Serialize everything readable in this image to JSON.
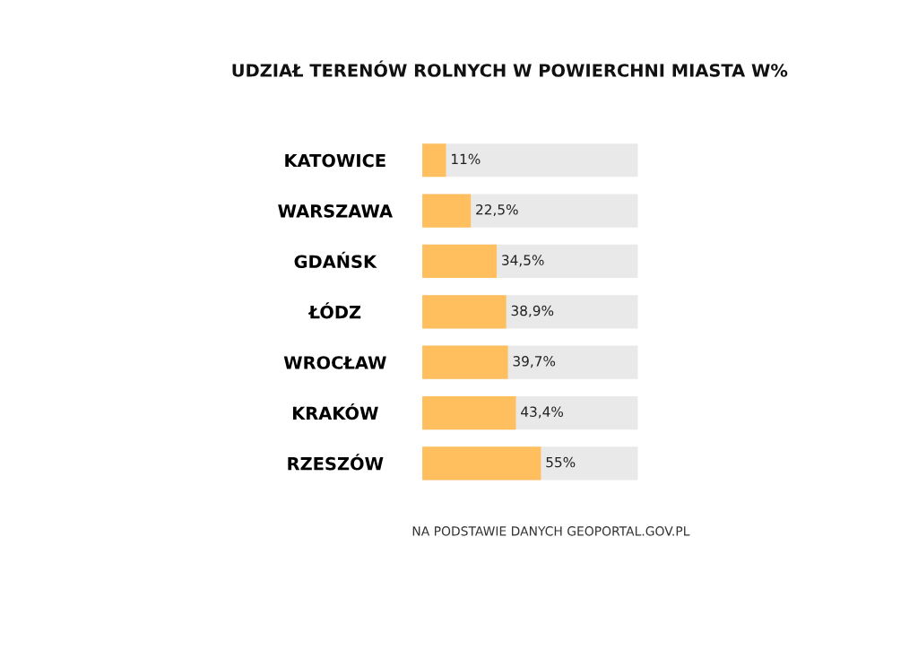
{
  "chart_data": {
    "type": "bar",
    "orientation": "horizontal",
    "title": "UDZIAŁ TERENÓW ROLNYCH W POWIERCHNI MIASTA W%",
    "categories": [
      "KATOWICE",
      "WARSZAWA",
      "GDAŃSK",
      "ŁÓDZ",
      "WROCŁAW",
      "KRAKÓW",
      "RZESZÓW"
    ],
    "series": [
      {
        "color": "#ffbf5e",
        "values": [
          11,
          22.5,
          34.5,
          38.9,
          39.7,
          43.4,
          55
        ],
        "value_labels": [
          "11%",
          "22,5%",
          "34,5%",
          "38,9%",
          "39,7%",
          "43,4%",
          "55%"
        ]
      }
    ],
    "bands": [
      {
        "axis": "x",
        "from": 0,
        "to": 100,
        "color": "#e9e9e9"
      }
    ],
    "tick_labels": "y",
    "grid": false,
    "legend": false,
    "annotations": [
      "NA PODSTAWIE DANYCH GEOPORTAL.GOV.PL"
    ]
  }
}
